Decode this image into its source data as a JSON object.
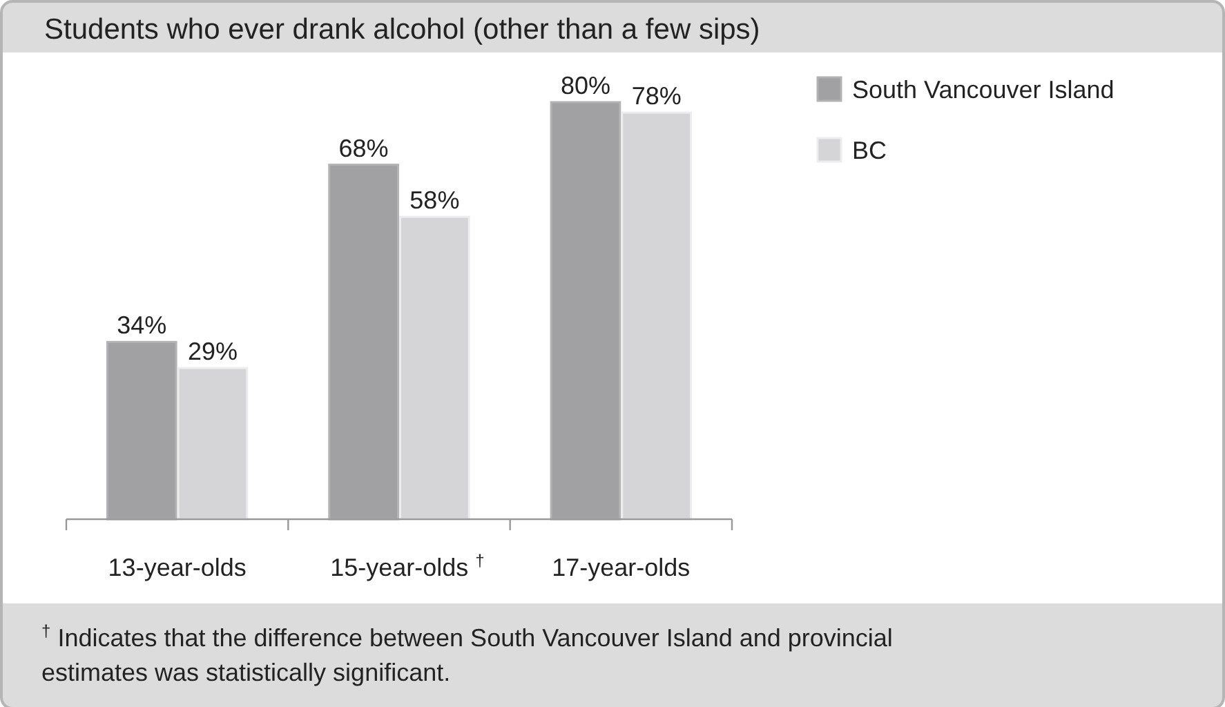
{
  "chart_data": {
    "type": "bar",
    "title": "Students who ever drank alcohol (other than a few sips)",
    "categories": [
      "13-year-olds",
      "15-year-olds $^{†}$",
      "17-year-olds"
    ],
    "series": [
      {
        "name": "South Vancouver Island",
        "color": "#a1a1a3",
        "values": [
          34,
          68,
          80
        ],
        "value_labels": [
          "34%",
          "68%",
          "80%"
        ]
      },
      {
        "name": "BC",
        "color": "#d5d5d7",
        "values": [
          29,
          58,
          78
        ],
        "value_labels": [
          "29%",
          "58%",
          "78%"
        ]
      }
    ],
    "legend": "top right",
    "grid": false,
    "annotations": [
      "$^{†}$ Indicates that the difference between South Vancouver Island and provincial estimates was statistically significant."
    ]
  }
}
